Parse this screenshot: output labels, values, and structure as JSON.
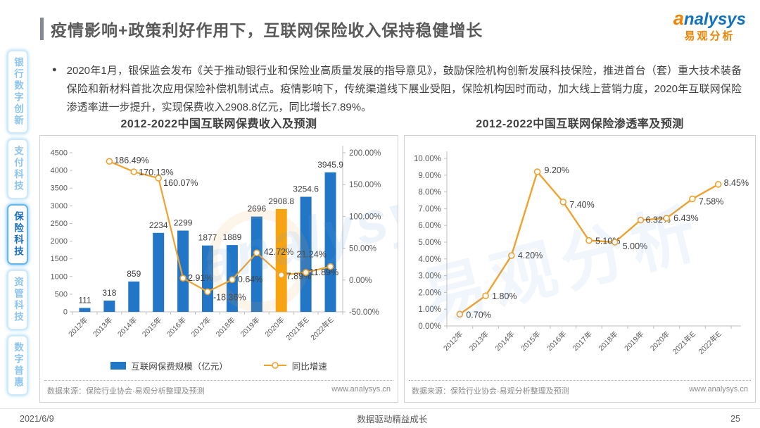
{
  "header": {
    "title": "疫情影响+政策利好作用下，互联网保险收入保持稳健增长",
    "logo": {
      "brand": "analysys",
      "brand_cn": "易观分析"
    }
  },
  "intro": {
    "bullet": "●",
    "text": "2020年1月，银保监会发布《关于推动银行业和保险业高质量发展的指导意见》，鼓励保险机构创新发展科技保险，推进首台（套）重大技术装备保险和新材料首批次应用保险补偿机制试点。疫情影响下，传统渠道线下展业受阻，保险机构因时而动，加大线上营销力度，2020年互联网保险渗透率进一步提升，实现保费收入2908.8亿元，同比增长7.89%。"
  },
  "sidebar": {
    "items": [
      {
        "label": "银行数字创新",
        "active": false
      },
      {
        "label": "支付科技",
        "active": false
      },
      {
        "label": "保险科技",
        "active": true
      },
      {
        "label": "资管科技",
        "active": false
      },
      {
        "label": "数字普惠",
        "active": false
      }
    ],
    "active_color": "#1b6fc0",
    "inactive_color": "#8ec5ec"
  },
  "watermark": {
    "en": "analysys",
    "cn": "易观分析"
  },
  "chart_data": [
    {
      "type": "bar",
      "title": "2012-2022中国互联网保费收入及预测",
      "categories": [
        "2012年",
        "2013年",
        "2014年",
        "2015年",
        "2016年",
        "2017年",
        "2018年",
        "2019年",
        "2020年",
        "2021年E",
        "2022年E"
      ],
      "series": [
        {
          "name": "互联网保费规模（亿元）",
          "type": "bar",
          "axis": "left",
          "color": "#2176c7",
          "highlight_color": "#f7a411",
          "highlight_index": 8,
          "values": [
            111,
            318,
            859,
            2234,
            2299,
            1877,
            1889,
            2696,
            2908.8,
            3254.6,
            3945.9
          ],
          "labels": [
            "111",
            "318",
            "859",
            "2234",
            "2299",
            "1877",
            "1889",
            "2696",
            "2908.8",
            "3254.6",
            "3945.9"
          ]
        },
        {
          "name": "同比增速",
          "type": "line",
          "axis": "right",
          "color": "#efa22e",
          "values": [
            null,
            186.49,
            170.13,
            160.07,
            2.91,
            -18.36,
            0.64,
            42.72,
            7.89,
            11.89,
            21.24
          ],
          "labels": [
            "",
            "186.49%",
            "170.13%",
            "160.07%",
            "2.91%",
            "-18.36%",
            "0.64%",
            "42.72%",
            "7.89%",
            "11.89%",
            "21.24%"
          ]
        }
      ],
      "axes": {
        "left": {
          "min": 0,
          "max": 4500,
          "step": 500,
          "tick_labels": [
            "0",
            "500",
            "1000",
            "1500",
            "2000",
            "2500",
            "3000",
            "3500",
            "4000",
            "4500"
          ]
        },
        "right": {
          "min": -50,
          "max": 200,
          "step": 50,
          "tick_labels": [
            "-50.00%",
            "0.00%",
            "50.00%",
            "100.00%",
            "150.00%",
            "200.00%"
          ]
        }
      },
      "legend_position": "bottom",
      "grid": false,
      "source": "数据来源：保险行业协会·易观分析整理及预测",
      "website": "www.analysys.cn"
    },
    {
      "type": "line",
      "title": "2012-2022中国互联网保险渗透率及预测",
      "categories": [
        "2012年",
        "2013年",
        "2014年",
        "2015年",
        "2016年",
        "2017年",
        "2018年",
        "2019年",
        "2020年",
        "2021年E",
        "2022年E"
      ],
      "series": [
        {
          "type": "line",
          "color": "#efa22e",
          "values": [
            0.7,
            1.8,
            4.2,
            9.2,
            7.4,
            5.1,
            5.0,
            6.32,
            6.43,
            7.58,
            8.45
          ],
          "labels": [
            "0.70%",
            "1.80%",
            "4.20%",
            "9.20%",
            "7.40%",
            "5.10%",
            "5.00%",
            "6.32%",
            "6.43%",
            "7.58%",
            "8.45%"
          ]
        }
      ],
      "axes": {
        "left": {
          "min": 0,
          "max": 10,
          "step": 1,
          "tick_labels": [
            "0.00%",
            "1.00%",
            "2.00%",
            "3.00%",
            "4.00%",
            "5.00%",
            "6.00%",
            "7.00%",
            "8.00%",
            "9.00%",
            "10.00%"
          ]
        }
      },
      "grid": false,
      "source": "数据来源：保险行业协会·易观分析整理及预测",
      "website": "www.analysys.cn"
    }
  ],
  "footer": {
    "date": "2021/6/9",
    "slogan": "数据驱动精益成长",
    "page": "25"
  }
}
